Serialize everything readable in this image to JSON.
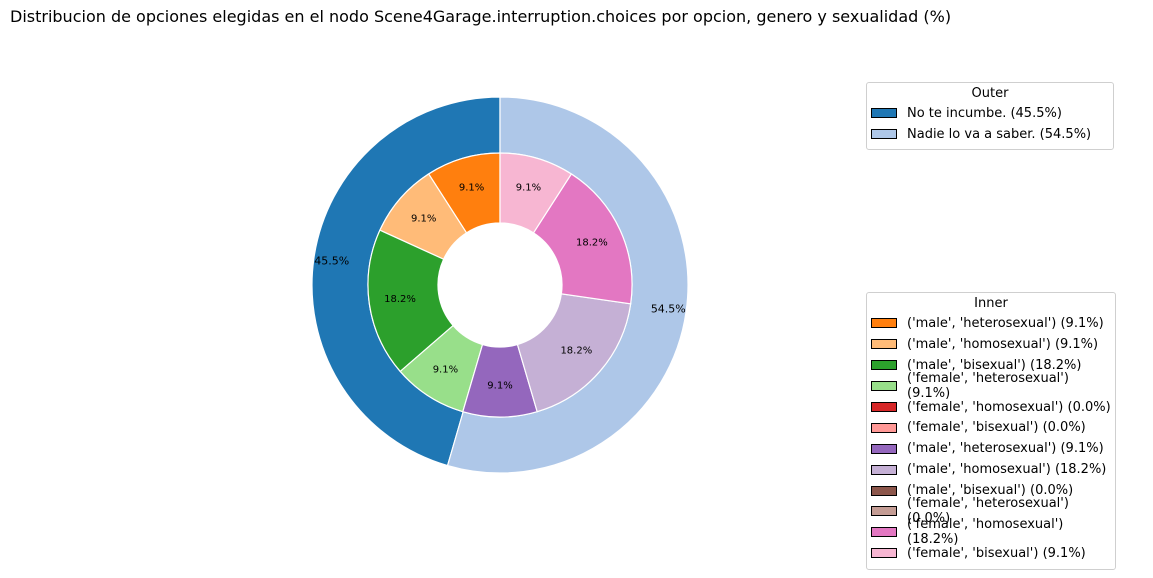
{
  "chart_data": {
    "type": "pie",
    "title": "Distribucion de opciones elegidas en el nodo Scene4Garage.interruption.choices por opcion, genero y sexualidad (%)",
    "outer": {
      "legend_title": "Outer",
      "slices": [
        {
          "label": "No te incumbe.",
          "value": 45.5,
          "color": "#1f77b4",
          "pct_label": "45.5%",
          "legend": "No te incumbe. (45.5%)"
        },
        {
          "label": "Nadie lo va a saber.",
          "value": 54.5,
          "color": "#aec7e8",
          "pct_label": "54.5%",
          "legend": "Nadie lo va a saber. (54.5%)"
        }
      ]
    },
    "inner": {
      "legend_title": "Inner",
      "slices": [
        {
          "label": "('male', 'heterosexual')",
          "value": 9.1,
          "color": "#ff7f0e",
          "pct_label": "9.1%",
          "legend": "('male', 'heterosexual') (9.1%)"
        },
        {
          "label": "('male', 'homosexual')",
          "value": 9.1,
          "color": "#ffbb78",
          "pct_label": "9.1%",
          "legend": "('male', 'homosexual') (9.1%)"
        },
        {
          "label": "('male', 'bisexual')",
          "value": 18.2,
          "color": "#2ca02c",
          "pct_label": "18.2%",
          "legend": "('male', 'bisexual') (18.2%)"
        },
        {
          "label": "('female', 'heterosexual')",
          "value": 9.1,
          "color": "#98df8a",
          "pct_label": "9.1%",
          "legend": "('female', 'heterosexual') (9.1%)"
        },
        {
          "label": "('female', 'homosexual')",
          "value": 0.0,
          "color": "#d62728",
          "pct_label": "",
          "legend": "('female', 'homosexual') (0.0%)"
        },
        {
          "label": "('female', 'bisexual')",
          "value": 0.0,
          "color": "#ff9896",
          "pct_label": "",
          "legend": "('female', 'bisexual') (0.0%)"
        },
        {
          "label": "('male', 'heterosexual')",
          "value": 9.1,
          "color": "#9467bd",
          "pct_label": "9.1%",
          "legend": "('male', 'heterosexual') (9.1%)"
        },
        {
          "label": "('male', 'homosexual')",
          "value": 18.2,
          "color": "#c5b0d5",
          "pct_label": "18.2%",
          "legend": "('male', 'homosexual') (18.2%)"
        },
        {
          "label": "('male', 'bisexual')",
          "value": 0.0,
          "color": "#8c564b",
          "pct_label": "",
          "legend": "('male', 'bisexual') (0.0%)"
        },
        {
          "label": "('female', 'heterosexual')",
          "value": 0.0,
          "color": "#c49c94",
          "pct_label": "",
          "legend": "('female', 'heterosexual') (0.0%)"
        },
        {
          "label": "('female', 'homosexual')",
          "value": 18.2,
          "color": "#e377c2",
          "pct_label": "18.2%",
          "legend": "('female', 'homosexual') (18.2%)"
        },
        {
          "label": "('female', 'bisexual')",
          "value": 9.1,
          "color": "#f7b6d2",
          "pct_label": "9.1%",
          "legend": "('female', 'bisexual') (9.1%)"
        }
      ]
    },
    "start_angle": "top",
    "direction": "counterclockwise"
  }
}
